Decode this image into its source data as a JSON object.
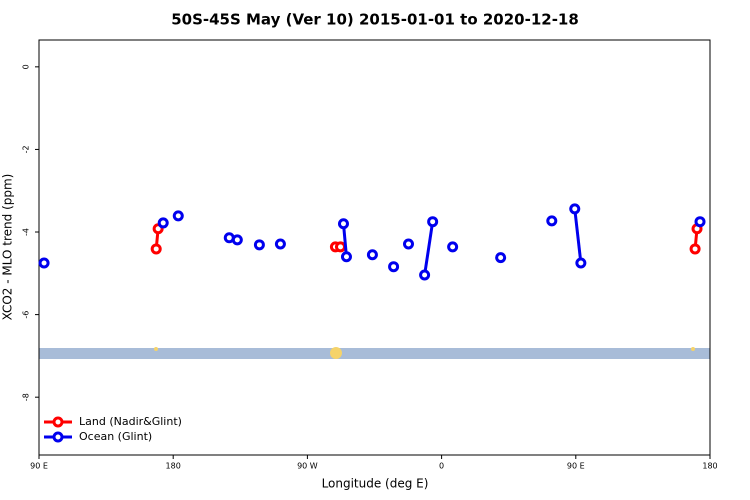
{
  "chart_data": {
    "type": "line",
    "title": "50S-45S May (Ver 10)   2015-01-01 to 2020-12-18",
    "x_label": "Longitude (deg E)",
    "y_label": "XCO2 - MLO trend (ppm)",
    "xlim": [
      90,
      540
    ],
    "xticks": [
      {
        "value": 90,
        "label": "90 E"
      },
      {
        "value": 180,
        "label": "180"
      },
      {
        "value": 270,
        "label": "90 W"
      },
      {
        "value": 360,
        "label": "0"
      },
      {
        "value": 450,
        "label": "90 E"
      },
      {
        "value": 540,
        "label": "180"
      }
    ],
    "ylim": [
      -9.4,
      0.65
    ],
    "yticks": [
      0,
      -2,
      -4,
      -6,
      -8
    ],
    "legend": "bottom-left",
    "series": [
      {
        "name": "Land (Nadir&Glint)",
        "color": "#ff0000",
        "x": [
          168.6,
          169.9,
          null,
          288.8,
          null,
          292.2,
          null,
          530,
          531.3
        ],
        "values": [
          -4.41,
          -3.92,
          null,
          -4.36,
          null,
          -4.36,
          null,
          -4.41,
          -3.92
        ]
      },
      {
        "name": "Ocean (Glint)",
        "color": "#0000ee",
        "x": [
          93.4,
          null,
          173.3,
          null,
          183.4,
          null,
          217.6,
          null,
          223,
          null,
          237.8,
          null,
          251.9,
          null,
          294.2,
          296.2,
          null,
          313.6,
          null,
          327.8,
          null,
          337.8,
          null,
          348.6,
          354,
          null,
          367.4,
          null,
          399.6,
          null,
          433.9,
          null,
          449.3,
          453.4,
          null,
          533.3
        ],
        "values": [
          -4.75,
          null,
          -3.78,
          null,
          -3.61,
          null,
          -4.14,
          null,
          -4.19,
          null,
          -4.31,
          null,
          -4.29,
          null,
          -3.8,
          -4.6,
          null,
          -4.55,
          null,
          -4.84,
          null,
          -4.29,
          null,
          -5.04,
          -3.75,
          null,
          -4.36,
          null,
          -4.62,
          null,
          -3.73,
          null,
          -3.44,
          -4.75,
          null,
          -3.75
        ]
      }
    ]
  }
}
